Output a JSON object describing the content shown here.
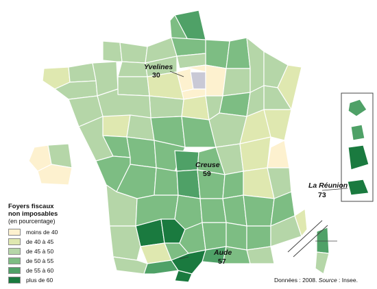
{
  "legend": {
    "title_line1": "Foyers fiscaux",
    "title_line2": "non imposables",
    "subtitle": "(en pourcentage)",
    "classes": [
      {
        "label": "moins de 40",
        "color": "#fdf1cf"
      },
      {
        "label": "de 40 à 45",
        "color": "#dfe8b0"
      },
      {
        "label": "de 45 à 50",
        "color": "#b5d6a8"
      },
      {
        "label": "de 50 à 55",
        "color": "#7dbd83"
      },
      {
        "label": "de 55 à 60",
        "color": "#4fa167"
      },
      {
        "label": "plus de 60",
        "color": "#1a7a3f"
      }
    ]
  },
  "callouts": {
    "yvelines": {
      "name": "Yvelines",
      "value": "30"
    },
    "creuse": {
      "name": "Creuse",
      "value": "59"
    },
    "reunion": {
      "name": "La Réunion",
      "value": "73"
    },
    "aude": {
      "name": "Aude",
      "value": "57"
    }
  },
  "source": {
    "prefix": "Données : 2008. ",
    "label": "Source",
    "suffix": " : Insee."
  },
  "colors": {
    "paris": "#c9c9d6",
    "border": "#ffffff",
    "outline": "#444444"
  }
}
